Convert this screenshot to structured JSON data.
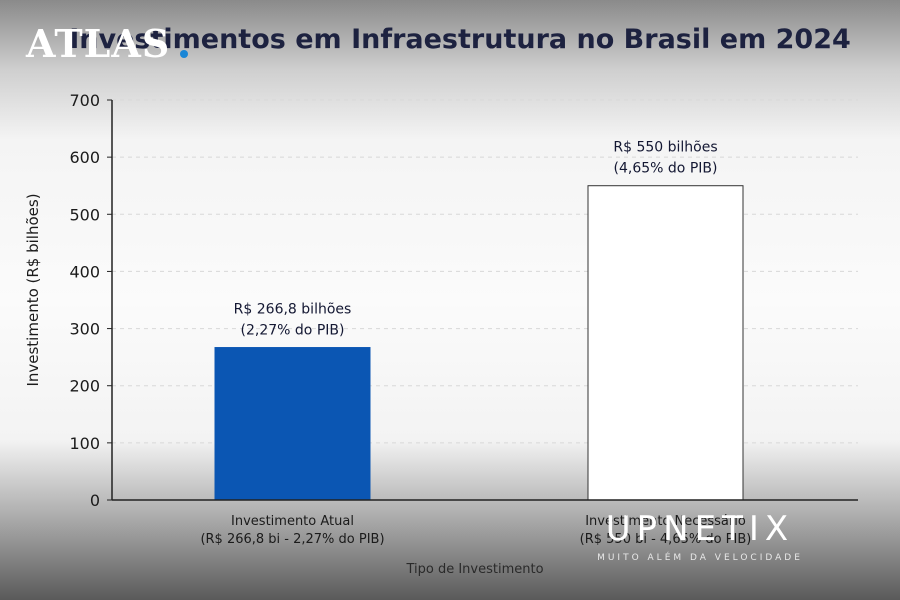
{
  "chart_data": {
    "type": "bar",
    "title": "Investimentos em Infraestrutura no Brasil em 2024",
    "xlabel": "Tipo de Investimento",
    "ylabel": "Investimento (R$ bilhões)",
    "ylim": [
      0,
      700
    ],
    "yticks": [
      0,
      100,
      200,
      300,
      400,
      500,
      600,
      700
    ],
    "grid": true,
    "categories": [
      [
        "Investimento Atual",
        "(R$ 266,8 bi - 2,27% do PIB)"
      ],
      [
        "Investimento Necessário",
        "(R$ 550 bi - 4,65% do PIB)"
      ]
    ],
    "values": [
      266.8,
      550
    ],
    "data_labels": [
      [
        "R$ 266,8 bilhões",
        "(2,27% do PIB)"
      ],
      [
        "R$ 550 bilhões",
        "(4,65% do PIB)"
      ]
    ],
    "colors": [
      "#0b56b3",
      "#ffffff"
    ],
    "edge_colors": [
      "#0b56b3",
      "#333333"
    ]
  },
  "watermarks": {
    "atlas": "ATLAS",
    "brand": "UPNETIX",
    "tagline": "MUITO ALÉM DA VELOCIDADE",
    "atlas_dot_color": "#1a86d6"
  }
}
